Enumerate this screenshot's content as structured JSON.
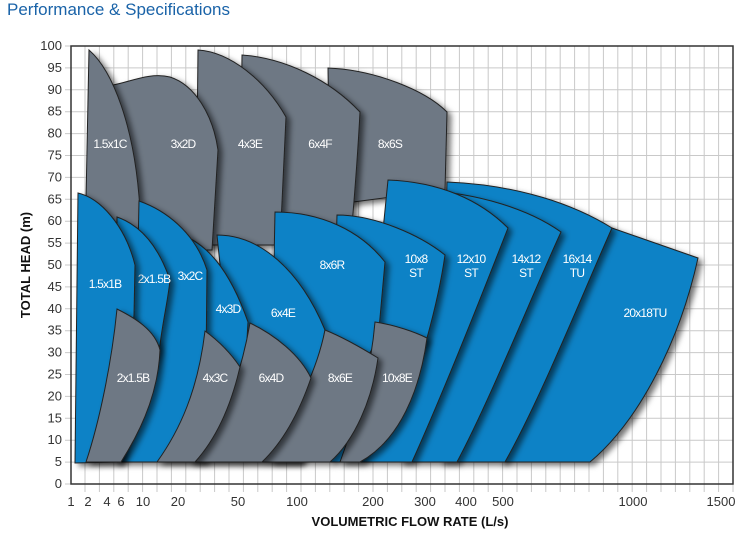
{
  "page": {
    "title": "Performance & Specifications"
  },
  "colors": {
    "gray_family": "#6e7884",
    "blue_family": "#0a82c6",
    "title": "#1a63a8"
  },
  "chart_data": {
    "type": "area",
    "xlabel": "VOLUMETRIC FLOW RATE (L/s)",
    "ylabel": "TOTAL HEAD (m)",
    "x_ticks": [
      "1",
      "2",
      "4",
      "6",
      "10",
      "20",
      "50",
      "100",
      "200",
      "300",
      "400",
      "500",
      "1000",
      "1500"
    ],
    "y_ticks": [
      "0",
      "5",
      "10",
      "15",
      "20",
      "25",
      "30",
      "35",
      "40",
      "45",
      "50",
      "55",
      "60",
      "65",
      "70",
      "75",
      "80",
      "85",
      "90",
      "95",
      "100"
    ],
    "xlim": [
      1,
      1500
    ],
    "ylim": [
      0,
      100
    ],
    "grid": true,
    "regions": [
      {
        "label": "8x6S",
        "color": "gray"
      },
      {
        "label": "6x4F",
        "color": "gray"
      },
      {
        "label": "4x3E",
        "color": "gray"
      },
      {
        "label": "3x2D",
        "color": "gray"
      },
      {
        "label": "1.5x1C",
        "color": "gray"
      },
      {
        "label": "20x18TU",
        "color": "blue"
      },
      {
        "label": "16x14 TU",
        "color": "blue"
      },
      {
        "label": "14x12 ST",
        "color": "blue"
      },
      {
        "label": "12x10 ST",
        "color": "blue"
      },
      {
        "label": "10x8 ST",
        "color": "blue"
      },
      {
        "label": "8x6R",
        "color": "blue"
      },
      {
        "label": "6x4E",
        "color": "blue"
      },
      {
        "label": "4x3D",
        "color": "blue"
      },
      {
        "label": "3x2C",
        "color": "blue"
      },
      {
        "label": "2x1.5B",
        "color": "blue"
      },
      {
        "label": "1.5x1B",
        "color": "blue"
      },
      {
        "label": "10x8E",
        "color": "gray"
      },
      {
        "label": "8x6E",
        "color": "gray"
      },
      {
        "label": "6x4D",
        "color": "gray"
      },
      {
        "label": "4x3C",
        "color": "gray"
      },
      {
        "label": "2x1.5B",
        "color": "gray"
      }
    ]
  }
}
